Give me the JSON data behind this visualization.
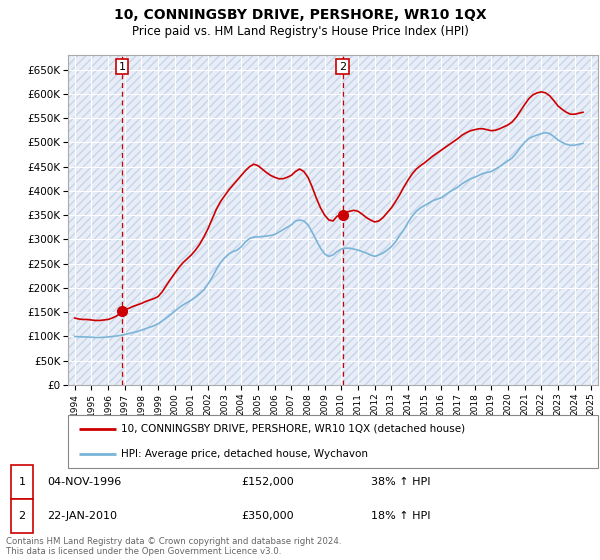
{
  "title": "10, CONNINGSBY DRIVE, PERSHORE, WR10 1QX",
  "subtitle": "Price paid vs. HM Land Registry's House Price Index (HPI)",
  "legend_line1": "10, CONNINGSBY DRIVE, PERSHORE, WR10 1QX (detached house)",
  "legend_line2": "HPI: Average price, detached house, Wychavon",
  "annotation1_label": "1",
  "annotation1_date": "04-NOV-1996",
  "annotation1_price": "£152,000",
  "annotation1_hpi": "38% ↑ HPI",
  "annotation1_year": 1996.85,
  "annotation1_value": 152000,
  "annotation2_label": "2",
  "annotation2_date": "22-JAN-2010",
  "annotation2_price": "£350,000",
  "annotation2_hpi": "18% ↑ HPI",
  "annotation2_year": 2010.07,
  "annotation2_value": 350000,
  "xlim": [
    1993.6,
    2025.4
  ],
  "ylim": [
    0,
    680000
  ],
  "yticks": [
    0,
    50000,
    100000,
    150000,
    200000,
    250000,
    300000,
    350000,
    400000,
    450000,
    500000,
    550000,
    600000,
    650000
  ],
  "hpi_color": "#7ab4d8",
  "price_color": "#cc0000",
  "bg_color": "#e8eef7",
  "footer_text": "Contains HM Land Registry data © Crown copyright and database right 2024.\nThis data is licensed under the Open Government Licence v3.0.",
  "hpi_data": [
    [
      1994.0,
      100000
    ],
    [
      1994.25,
      99500
    ],
    [
      1994.5,
      99000
    ],
    [
      1994.75,
      99000
    ],
    [
      1995.0,
      98500
    ],
    [
      1995.25,
      98000
    ],
    [
      1995.5,
      98000
    ],
    [
      1995.75,
      98500
    ],
    [
      1996.0,
      99000
    ],
    [
      1996.25,
      100000
    ],
    [
      1996.5,
      101000
    ],
    [
      1996.75,
      102000
    ],
    [
      1997.0,
      104000
    ],
    [
      1997.25,
      106000
    ],
    [
      1997.5,
      108000
    ],
    [
      1997.75,
      110000
    ],
    [
      1998.0,
      113000
    ],
    [
      1998.25,
      116000
    ],
    [
      1998.5,
      119000
    ],
    [
      1998.75,
      122000
    ],
    [
      1999.0,
      126000
    ],
    [
      1999.25,
      132000
    ],
    [
      1999.5,
      138000
    ],
    [
      1999.75,
      145000
    ],
    [
      2000.0,
      152000
    ],
    [
      2000.25,
      159000
    ],
    [
      2000.5,
      165000
    ],
    [
      2000.75,
      170000
    ],
    [
      2001.0,
      175000
    ],
    [
      2001.25,
      181000
    ],
    [
      2001.5,
      188000
    ],
    [
      2001.75,
      196000
    ],
    [
      2002.0,
      208000
    ],
    [
      2002.25,
      222000
    ],
    [
      2002.5,
      238000
    ],
    [
      2002.75,
      252000
    ],
    [
      2003.0,
      262000
    ],
    [
      2003.25,
      270000
    ],
    [
      2003.5,
      275000
    ],
    [
      2003.75,
      278000
    ],
    [
      2004.0,
      285000
    ],
    [
      2004.25,
      295000
    ],
    [
      2004.5,
      302000
    ],
    [
      2004.75,
      305000
    ],
    [
      2005.0,
      305000
    ],
    [
      2005.25,
      306000
    ],
    [
      2005.5,
      307000
    ],
    [
      2005.75,
      308000
    ],
    [
      2006.0,
      310000
    ],
    [
      2006.25,
      315000
    ],
    [
      2006.5,
      320000
    ],
    [
      2006.75,
      325000
    ],
    [
      2007.0,
      330000
    ],
    [
      2007.25,
      338000
    ],
    [
      2007.5,
      340000
    ],
    [
      2007.75,
      338000
    ],
    [
      2008.0,
      330000
    ],
    [
      2008.25,
      315000
    ],
    [
      2008.5,
      298000
    ],
    [
      2008.75,
      282000
    ],
    [
      2009.0,
      270000
    ],
    [
      2009.25,
      265000
    ],
    [
      2009.5,
      268000
    ],
    [
      2009.75,
      275000
    ],
    [
      2010.0,
      280000
    ],
    [
      2010.25,
      282000
    ],
    [
      2010.5,
      282000
    ],
    [
      2010.75,
      280000
    ],
    [
      2011.0,
      278000
    ],
    [
      2011.25,
      275000
    ],
    [
      2011.5,
      272000
    ],
    [
      2011.75,
      268000
    ],
    [
      2012.0,
      265000
    ],
    [
      2012.25,
      268000
    ],
    [
      2012.5,
      272000
    ],
    [
      2012.75,
      278000
    ],
    [
      2013.0,
      285000
    ],
    [
      2013.25,
      295000
    ],
    [
      2013.5,
      308000
    ],
    [
      2013.75,
      320000
    ],
    [
      2014.0,
      335000
    ],
    [
      2014.25,
      348000
    ],
    [
      2014.5,
      358000
    ],
    [
      2014.75,
      365000
    ],
    [
      2015.0,
      370000
    ],
    [
      2015.25,
      375000
    ],
    [
      2015.5,
      380000
    ],
    [
      2015.75,
      383000
    ],
    [
      2016.0,
      386000
    ],
    [
      2016.25,
      392000
    ],
    [
      2016.5,
      398000
    ],
    [
      2016.75,
      403000
    ],
    [
      2017.0,
      408000
    ],
    [
      2017.25,
      415000
    ],
    [
      2017.5,
      420000
    ],
    [
      2017.75,
      425000
    ],
    [
      2018.0,
      428000
    ],
    [
      2018.25,
      432000
    ],
    [
      2018.5,
      436000
    ],
    [
      2018.75,
      438000
    ],
    [
      2019.0,
      440000
    ],
    [
      2019.25,
      445000
    ],
    [
      2019.5,
      450000
    ],
    [
      2019.75,
      456000
    ],
    [
      2020.0,
      462000
    ],
    [
      2020.25,
      468000
    ],
    [
      2020.5,
      478000
    ],
    [
      2020.75,
      490000
    ],
    [
      2021.0,
      500000
    ],
    [
      2021.25,
      508000
    ],
    [
      2021.5,
      512000
    ],
    [
      2021.75,
      515000
    ],
    [
      2022.0,
      518000
    ],
    [
      2022.25,
      520000
    ],
    [
      2022.5,
      518000
    ],
    [
      2022.75,
      512000
    ],
    [
      2023.0,
      505000
    ],
    [
      2023.25,
      500000
    ],
    [
      2023.5,
      496000
    ],
    [
      2023.75,
      494000
    ],
    [
      2024.0,
      494000
    ],
    [
      2024.25,
      496000
    ],
    [
      2024.5,
      498000
    ]
  ],
  "price_data": [
    [
      1994.0,
      138000
    ],
    [
      1994.25,
      136000
    ],
    [
      1994.5,
      135000
    ],
    [
      1994.75,
      135000
    ],
    [
      1995.0,
      134000
    ],
    [
      1995.25,
      133000
    ],
    [
      1995.5,
      133000
    ],
    [
      1995.75,
      134000
    ],
    [
      1996.0,
      135000
    ],
    [
      1996.25,
      138000
    ],
    [
      1996.5,
      142000
    ],
    [
      1996.75,
      148000
    ],
    [
      1996.85,
      152000
    ],
    [
      1997.0,
      155000
    ],
    [
      1997.25,
      158000
    ],
    [
      1997.5,
      162000
    ],
    [
      1997.75,
      165000
    ],
    [
      1998.0,
      168000
    ],
    [
      1998.25,
      172000
    ],
    [
      1998.5,
      175000
    ],
    [
      1998.75,
      178000
    ],
    [
      1999.0,
      182000
    ],
    [
      1999.25,
      192000
    ],
    [
      1999.5,
      205000
    ],
    [
      1999.75,
      218000
    ],
    [
      2000.0,
      230000
    ],
    [
      2000.25,
      242000
    ],
    [
      2000.5,
      252000
    ],
    [
      2000.75,
      260000
    ],
    [
      2001.0,
      268000
    ],
    [
      2001.25,
      278000
    ],
    [
      2001.5,
      290000
    ],
    [
      2001.75,
      305000
    ],
    [
      2002.0,
      322000
    ],
    [
      2002.25,
      342000
    ],
    [
      2002.5,
      362000
    ],
    [
      2002.75,
      378000
    ],
    [
      2003.0,
      390000
    ],
    [
      2003.25,
      402000
    ],
    [
      2003.5,
      412000
    ],
    [
      2003.75,
      422000
    ],
    [
      2004.0,
      432000
    ],
    [
      2004.25,
      442000
    ],
    [
      2004.5,
      450000
    ],
    [
      2004.75,
      455000
    ],
    [
      2005.0,
      452000
    ],
    [
      2005.25,
      445000
    ],
    [
      2005.5,
      438000
    ],
    [
      2005.75,
      432000
    ],
    [
      2006.0,
      428000
    ],
    [
      2006.25,
      425000
    ],
    [
      2006.5,
      425000
    ],
    [
      2006.75,
      428000
    ],
    [
      2007.0,
      432000
    ],
    [
      2007.25,
      440000
    ],
    [
      2007.5,
      445000
    ],
    [
      2007.75,
      440000
    ],
    [
      2008.0,
      428000
    ],
    [
      2008.25,
      408000
    ],
    [
      2008.5,
      385000
    ],
    [
      2008.75,
      365000
    ],
    [
      2009.0,
      350000
    ],
    [
      2009.25,
      340000
    ],
    [
      2009.5,
      338000
    ],
    [
      2009.75,
      348000
    ],
    [
      2010.07,
      350000
    ],
    [
      2010.25,
      355000
    ],
    [
      2010.5,
      358000
    ],
    [
      2010.75,
      360000
    ],
    [
      2011.0,
      358000
    ],
    [
      2011.25,
      352000
    ],
    [
      2011.5,
      345000
    ],
    [
      2011.75,
      340000
    ],
    [
      2012.0,
      336000
    ],
    [
      2012.25,
      338000
    ],
    [
      2012.5,
      345000
    ],
    [
      2012.75,
      355000
    ],
    [
      2013.0,
      365000
    ],
    [
      2013.25,
      378000
    ],
    [
      2013.5,
      392000
    ],
    [
      2013.75,
      408000
    ],
    [
      2014.0,
      422000
    ],
    [
      2014.25,
      435000
    ],
    [
      2014.5,
      445000
    ],
    [
      2014.75,
      452000
    ],
    [
      2015.0,
      458000
    ],
    [
      2015.25,
      465000
    ],
    [
      2015.5,
      472000
    ],
    [
      2015.75,
      478000
    ],
    [
      2016.0,
      484000
    ],
    [
      2016.25,
      490000
    ],
    [
      2016.5,
      496000
    ],
    [
      2016.75,
      502000
    ],
    [
      2017.0,
      508000
    ],
    [
      2017.25,
      515000
    ],
    [
      2017.5,
      520000
    ],
    [
      2017.75,
      524000
    ],
    [
      2018.0,
      526000
    ],
    [
      2018.25,
      528000
    ],
    [
      2018.5,
      528000
    ],
    [
      2018.75,
      526000
    ],
    [
      2019.0,
      524000
    ],
    [
      2019.25,
      525000
    ],
    [
      2019.5,
      528000
    ],
    [
      2019.75,
      532000
    ],
    [
      2020.0,
      536000
    ],
    [
      2020.25,
      542000
    ],
    [
      2020.5,
      552000
    ],
    [
      2020.75,
      565000
    ],
    [
      2021.0,
      578000
    ],
    [
      2021.25,
      590000
    ],
    [
      2021.5,
      598000
    ],
    [
      2021.75,
      602000
    ],
    [
      2022.0,
      604000
    ],
    [
      2022.25,
      602000
    ],
    [
      2022.5,
      596000
    ],
    [
      2022.75,
      586000
    ],
    [
      2023.0,
      575000
    ],
    [
      2023.25,
      568000
    ],
    [
      2023.5,
      562000
    ],
    [
      2023.75,
      558000
    ],
    [
      2024.0,
      558000
    ],
    [
      2024.25,
      560000
    ],
    [
      2024.5,
      562000
    ]
  ]
}
